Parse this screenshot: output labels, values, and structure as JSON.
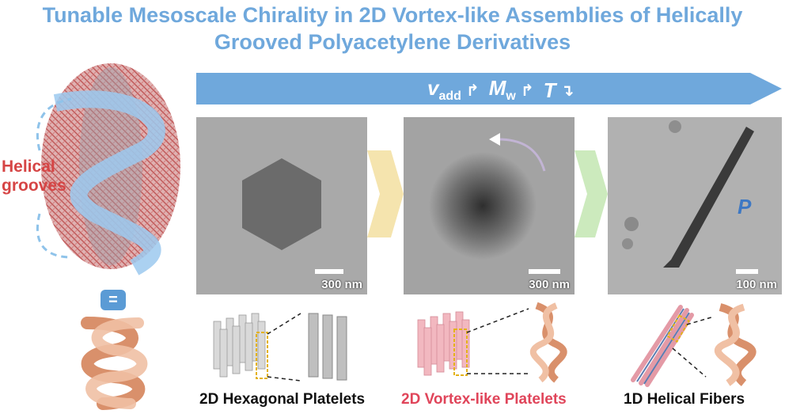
{
  "title": {
    "line1": "Tunable Mesoscale Chirality in 2D Vortex-like Assemblies of Helically",
    "line2": "Grooved Polyacetylene Derivatives"
  },
  "arrow_params": {
    "v": "v",
    "v_sub": "add",
    "m": "M",
    "m_sub": "w",
    "t": "T",
    "v_symbol": "↱",
    "m_symbol": "↱",
    "t_symbol": "↴"
  },
  "left": {
    "label_line1": "Helical",
    "label_line2": "grooves",
    "equiv_symbol": "="
  },
  "panels": [
    {
      "scale": "300 nm",
      "caption": "2D Hexagonal Platelets"
    },
    {
      "scale": "300 nm",
      "caption": "2D Vortex-like Platelets"
    },
    {
      "scale": "100 nm",
      "caption": "1D Helical Fibers"
    }
  ],
  "helix_label": "P",
  "colors": {
    "title": "#6fa8dc",
    "arrow": "#6fa8dc",
    "caption_highlight": "#e0455a",
    "helical_label": "#d64545"
  }
}
